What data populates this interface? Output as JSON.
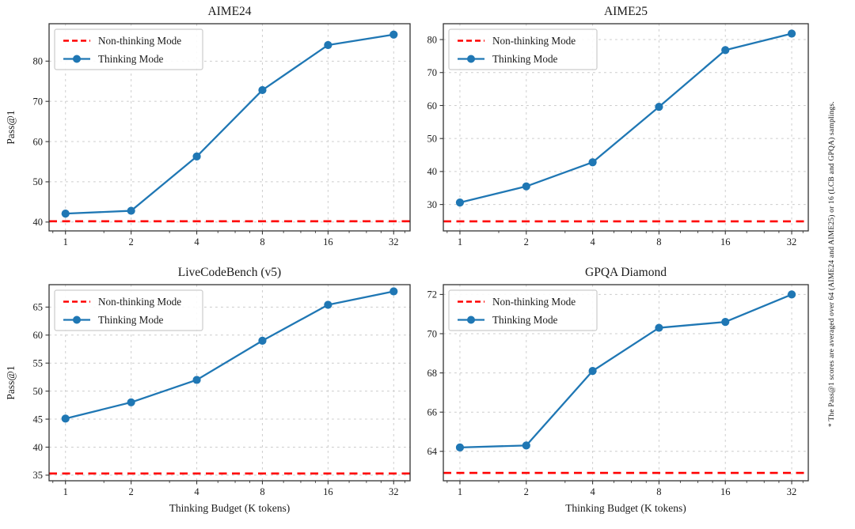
{
  "figure": {
    "background": "#ffffff"
  },
  "footnote": "* The Pass@1 scores are averaged over 64 (AIME24 and AIME25) or 16 (LCB and GPQA) samplings.",
  "colors": {
    "thinking": "#1f77b4",
    "non_thinking": "#ff0000",
    "grid": "#cccccc",
    "spine": "#333333",
    "text": "#000000",
    "legend_border": "#cccccc",
    "legend_bg": "#ffffff"
  },
  "legend": {
    "non_thinking_label": "Non-thinking Mode",
    "thinking_label": "Thinking Mode",
    "position": "upper left"
  },
  "x_axis": {
    "label": "Thinking Budget (K tokens)",
    "scale": "log2",
    "ticks": [
      1,
      2,
      4,
      8,
      16,
      32
    ],
    "minor_ticks": [
      0.875,
      1.5,
      3,
      5,
      6,
      7,
      10,
      12,
      14,
      20,
      24,
      28,
      36
    ]
  },
  "chart_data": [
    {
      "type": "line",
      "title": "AIME24",
      "xlabel": "",
      "ylabel": "Pass@1",
      "x": [
        1,
        2,
        4,
        8,
        16,
        32
      ],
      "x_scale": "log2",
      "ylim": [
        37.8,
        89.3
      ],
      "yticks": [
        40,
        50,
        60,
        70,
        80
      ],
      "grid": true,
      "legend_position": "upper left",
      "series": [
        {
          "name": "Non-thinking Mode",
          "type": "hline",
          "value": 40.2,
          "color_key": "non_thinking",
          "line_style": "dashed"
        },
        {
          "name": "Thinking Mode",
          "type": "line",
          "values": [
            42.1,
            42.8,
            56.3,
            72.8,
            84.0,
            86.6
          ],
          "color_key": "thinking",
          "line_style": "solid",
          "marker": "circle"
        }
      ]
    },
    {
      "type": "line",
      "title": "AIME25",
      "xlabel": "",
      "ylabel": "",
      "x": [
        1,
        2,
        4,
        8,
        16,
        32
      ],
      "x_scale": "log2",
      "ylim": [
        22.0,
        84.8
      ],
      "yticks": [
        30,
        40,
        50,
        60,
        70,
        80
      ],
      "grid": true,
      "legend_position": "upper left",
      "series": [
        {
          "name": "Non-thinking Mode",
          "type": "hline",
          "value": 24.9,
          "color_key": "non_thinking",
          "line_style": "dashed"
        },
        {
          "name": "Thinking Mode",
          "type": "line",
          "values": [
            30.6,
            35.5,
            42.8,
            59.6,
            76.8,
            81.8
          ],
          "color_key": "thinking",
          "line_style": "solid",
          "marker": "circle"
        }
      ]
    },
    {
      "type": "line",
      "title": "LiveCodeBench (v5)",
      "xlabel": "Thinking Budget (K tokens)",
      "ylabel": "Pass@1",
      "x": [
        1,
        2,
        4,
        8,
        16,
        32
      ],
      "x_scale": "log2",
      "ylim": [
        34.0,
        69.0
      ],
      "yticks": [
        35,
        40,
        45,
        50,
        55,
        60,
        65
      ],
      "grid": true,
      "legend_position": "upper left",
      "series": [
        {
          "name": "Non-thinking Mode",
          "type": "hline",
          "value": 35.3,
          "color_key": "non_thinking",
          "line_style": "dashed"
        },
        {
          "name": "Thinking Mode",
          "type": "line",
          "values": [
            45.1,
            48.0,
            52.0,
            59.0,
            65.4,
            67.8
          ],
          "color_key": "thinking",
          "line_style": "solid",
          "marker": "circle"
        }
      ]
    },
    {
      "type": "line",
      "title": "GPQA Diamond",
      "xlabel": "Thinking Budget (K tokens)",
      "ylabel": "",
      "x": [
        1,
        2,
        4,
        8,
        16,
        32
      ],
      "x_scale": "log2",
      "ylim": [
        62.5,
        72.5
      ],
      "yticks": [
        64,
        66,
        68,
        70,
        72
      ],
      "grid": true,
      "legend_position": "upper left",
      "series": [
        {
          "name": "Non-thinking Mode",
          "type": "hline",
          "value": 62.9,
          "color_key": "non_thinking",
          "line_style": "dashed"
        },
        {
          "name": "Thinking Mode",
          "type": "line",
          "values": [
            64.2,
            64.3,
            68.1,
            70.3,
            70.6,
            72.0
          ],
          "color_key": "thinking",
          "line_style": "solid",
          "marker": "circle"
        }
      ]
    }
  ]
}
